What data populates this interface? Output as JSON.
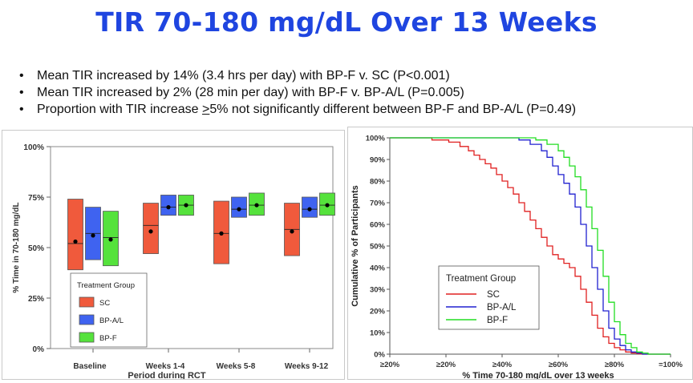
{
  "title": "TIR 70-180 mg/dL Over 13 Weeks",
  "bullets": [
    {
      "text": "Mean TIR increased by 14% (3.4 hrs per day) with BP-F v. SC (P<0.001)"
    },
    {
      "text": "Mean TIR increased by 2% (28 min per day) with BP-F v. BP-A/L (P=0.005)"
    },
    {
      "pre": "Proportion with TIR increase ",
      "underlined": ">",
      "post": "5% not significantly different between BP-F and BP-A/L (P=0.49)"
    }
  ],
  "colors": {
    "title": "#1f45e0",
    "SC": "#f05a3c",
    "BP-A/L": "#3f63f0",
    "BP-F": "#55e23c",
    "SC_line": "#e02020",
    "BP-A/L_line": "#2020d0",
    "BP-F_line": "#22dd22"
  },
  "chart_data": [
    {
      "type": "box",
      "xlabel": "Period during RCT",
      "ylabel": "% Time in 70-180 mg/dL",
      "ylim": [
        0,
        100
      ],
      "y_ticks": [
        "0%",
        "25%",
        "50%",
        "75%",
        "100%"
      ],
      "categories": [
        "Baseline",
        "Weeks 1-4",
        "Weeks 5-8",
        "Weeks 9-12"
      ],
      "legend": {
        "title": "Treatment Group",
        "placement": "bottom-left",
        "entries": [
          "SC",
          "BP-A/L",
          "BP-F"
        ]
      },
      "series": [
        {
          "name": "SC",
          "boxes": [
            {
              "q1": 39,
              "median": 52,
              "q3": 74,
              "mean": 53
            },
            {
              "q1": 47,
              "median": 61,
              "q3": 72,
              "mean": 58
            },
            {
              "q1": 42,
              "median": 57,
              "q3": 73,
              "mean": 57
            },
            {
              "q1": 46,
              "median": 59,
              "q3": 72,
              "mean": 58
            }
          ]
        },
        {
          "name": "BP-A/L",
          "boxes": [
            {
              "q1": 44,
              "median": 57,
              "q3": 70,
              "mean": 56
            },
            {
              "q1": 66,
              "median": 70,
              "q3": 76,
              "mean": 70
            },
            {
              "q1": 65,
              "median": 69,
              "q3": 75,
              "mean": 69
            },
            {
              "q1": 65,
              "median": 69,
              "q3": 75,
              "mean": 69
            }
          ]
        },
        {
          "name": "BP-F",
          "boxes": [
            {
              "q1": 41,
              "median": 55,
              "q3": 68,
              "mean": 54
            },
            {
              "q1": 66,
              "median": 71,
              "q3": 76,
              "mean": 71
            },
            {
              "q1": 66,
              "median": 71,
              "q3": 77,
              "mean": 71
            },
            {
              "q1": 66,
              "median": 71,
              "q3": 77,
              "mean": 71
            }
          ]
        }
      ]
    },
    {
      "type": "line",
      "step": true,
      "xlabel": "% Time 70-180 mg/dL over 13 weeks",
      "ylabel": "Cumulative % of Participants",
      "xlim": [
        0,
        100
      ],
      "ylim": [
        0,
        100
      ],
      "x_ticks": [
        "≥20%",
        "≥20%",
        "≥40%",
        "≥60%",
        "≥80%",
        "=100%"
      ],
      "y_ticks": [
        "0%",
        "10%",
        "20%",
        "30%",
        "40%",
        "50%",
        "60%",
        "70%",
        "80%",
        "90%",
        "100%"
      ],
      "legend": {
        "title": "Treatment Group",
        "placement": "bottom-left",
        "entries": [
          "SC",
          "BP-A/L",
          "BP-F"
        ]
      },
      "series": [
        {
          "name": "SC",
          "x": [
            0,
            15,
            21,
            25,
            28,
            30,
            32,
            34,
            36,
            38,
            40,
            42,
            44,
            46,
            48,
            50,
            52,
            54,
            56,
            58,
            60,
            62,
            64,
            66,
            68,
            70,
            72,
            74,
            76,
            78,
            80,
            82,
            84,
            86,
            88,
            90
          ],
          "y": [
            100,
            99,
            98,
            96,
            94,
            92,
            90,
            88,
            86,
            83,
            80,
            77,
            74,
            70,
            66,
            62,
            58,
            54,
            50,
            46,
            44,
            42,
            40,
            36,
            30,
            24,
            18,
            12,
            8,
            5,
            3,
            2,
            1,
            0.5,
            0.2,
            0
          ]
        },
        {
          "name": "BP-A/L",
          "x": [
            0,
            40,
            46,
            50,
            54,
            56,
            58,
            60,
            62,
            64,
            66,
            68,
            70,
            72,
            74,
            76,
            78,
            80,
            82,
            84,
            86,
            88,
            90
          ],
          "y": [
            100,
            100,
            99,
            97,
            94,
            91,
            87,
            83,
            79,
            74,
            68,
            60,
            50,
            40,
            30,
            20,
            12,
            7,
            4,
            2,
            1,
            0.5,
            0
          ]
        },
        {
          "name": "BP-F",
          "x": [
            0,
            48,
            52,
            56,
            60,
            62,
            64,
            66,
            68,
            70,
            72,
            74,
            76,
            78,
            80,
            82,
            84,
            86,
            88,
            90,
            92
          ],
          "y": [
            100,
            100,
            99,
            97,
            94,
            91,
            87,
            82,
            76,
            68,
            58,
            48,
            36,
            24,
            15,
            9,
            5,
            3,
            1,
            0.5,
            0
          ]
        }
      ]
    }
  ]
}
